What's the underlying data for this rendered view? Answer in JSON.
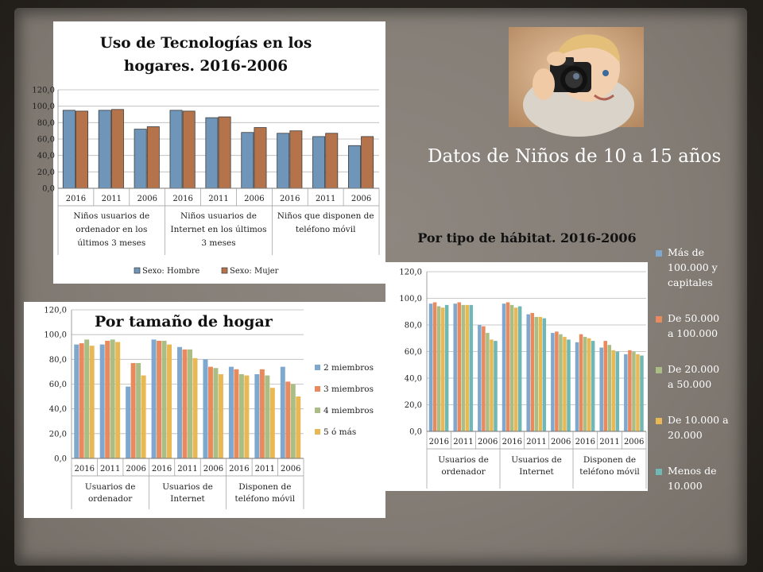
{
  "slide": {
    "headline": "Datos de Niños de 10 a 15 años"
  },
  "charts": [
    {
      "id": "chart1",
      "type": "bar",
      "title_lines": [
        "Uso de Tecnologías en los",
        "hogares. 2016-2006"
      ],
      "ylim": [
        0,
        120
      ],
      "yticks": [
        "0,0",
        "20,0",
        "40,0",
        "60,0",
        "80,0",
        "100,0",
        "120,0"
      ],
      "grid": true,
      "legend_position": "bottom",
      "categories": [
        "2016",
        "2011",
        "2006",
        "2016",
        "2011",
        "2006",
        "2016",
        "2011",
        "2006"
      ],
      "groups": [
        {
          "lines": [
            "Niños usuarios de",
            "ordenador en los",
            "últimos 3 meses"
          ],
          "span": 3
        },
        {
          "lines": [
            "Niños usuarios de",
            "Internet en los  últimos",
            "3 meses"
          ],
          "span": 3
        },
        {
          "lines": [
            "Niños que disponen de",
            "teléfono móvil"
          ],
          "span": 3
        }
      ],
      "series": [
        {
          "name": "Sexo: Hombre",
          "color": "#6f95b8",
          "values": [
            95,
            95,
            72,
            95,
            86,
            68,
            67,
            63,
            52
          ]
        },
        {
          "name": "Sexo: Mujer",
          "color": "#b5734b",
          "values": [
            94,
            96,
            75,
            94,
            87,
            74,
            70,
            67,
            63
          ]
        }
      ]
    },
    {
      "id": "chart2",
      "type": "bar",
      "title_lines": [
        "Por tamaño de hogar"
      ],
      "ylim": [
        0,
        120
      ],
      "yticks": [
        "0,0",
        "20,0",
        "40,0",
        "60,0",
        "80,0",
        "100,0",
        "120,0"
      ],
      "grid": true,
      "legend_position": "right",
      "categories": [
        "2016",
        "2011",
        "2006",
        "2016",
        "2011",
        "2006",
        "2016",
        "2011",
        "2006"
      ],
      "groups": [
        {
          "lines": [
            "Usuarios de",
            "ordenador"
          ],
          "span": 3
        },
        {
          "lines": [
            "Usuarios de",
            "Internet"
          ],
          "span": 3
        },
        {
          "lines": [
            "Disponen de",
            "teléfono móvil"
          ],
          "span": 3
        }
      ],
      "series": [
        {
          "name": "2 miembros",
          "color": "#7fa8cf",
          "values": [
            92,
            92,
            58,
            96,
            90,
            80,
            74,
            68,
            74
          ]
        },
        {
          "name": "3 miembros",
          "color": "#e88a5e",
          "values": [
            93,
            95,
            77,
            95,
            88,
            74,
            72,
            72,
            62
          ]
        },
        {
          "name": "4 miembros",
          "color": "#a9bd84",
          "values": [
            96,
            96,
            77,
            95,
            88,
            73,
            68,
            67,
            60
          ]
        },
        {
          "name": "5 ó más",
          "color": "#e8b855",
          "values": [
            91,
            94,
            67,
            92,
            81,
            68,
            67,
            57,
            50
          ]
        }
      ]
    },
    {
      "id": "chart3",
      "type": "bar",
      "title_lines": [
        "Por tipo de hábitat. 2016-2006"
      ],
      "ylim": [
        0,
        120
      ],
      "yticks": [
        "0,0",
        "20,0",
        "40,0",
        "60,0",
        "80,0",
        "100,0",
        "120,0"
      ],
      "grid": true,
      "legend_position": "right",
      "categories": [
        "2016",
        "2011",
        "2006",
        "2016",
        "2011",
        "2006",
        "2016",
        "2011",
        "2006"
      ],
      "groups": [
        {
          "lines": [
            "Usuarios de",
            "ordenador"
          ],
          "span": 3
        },
        {
          "lines": [
            "Usuarios de",
            "Internet"
          ],
          "span": 3
        },
        {
          "lines": [
            "Disponen de",
            "teléfono móvil"
          ],
          "span": 3
        }
      ],
      "series": [
        {
          "name": "Más de 100.000 y capitales",
          "color": "#7fa8cf",
          "values": [
            96,
            96,
            80,
            96,
            88,
            74,
            67,
            63,
            58
          ]
        },
        {
          "name": "De 50.000 a 100.000",
          "color": "#e88a5e",
          "values": [
            97,
            97,
            79,
            97,
            89,
            75,
            73,
            68,
            61
          ]
        },
        {
          "name": "De 20.000 a 50.000",
          "color": "#a9bd84",
          "values": [
            94,
            95,
            74,
            95,
            86,
            73,
            71,
            65,
            60
          ]
        },
        {
          "name": "De 10.000 a 20.000",
          "color": "#e8b855",
          "values": [
            93,
            95,
            69,
            93,
            86,
            71,
            70,
            61,
            58
          ]
        },
        {
          "name": "Menos de 10.000",
          "color": "#6fb8b5",
          "values": [
            95,
            95,
            68,
            94,
            85,
            69,
            68,
            60,
            57
          ]
        }
      ],
      "legend_lines": [
        [
          "Más de",
          "100.000 y",
          "capitales"
        ],
        [
          "De 50.000",
          "a 100.000"
        ],
        [
          "De 20.000",
          "a 50.000"
        ],
        [
          "De 10.000 a",
          "20.000"
        ],
        [
          "Menos de",
          "10.000"
        ]
      ]
    }
  ]
}
